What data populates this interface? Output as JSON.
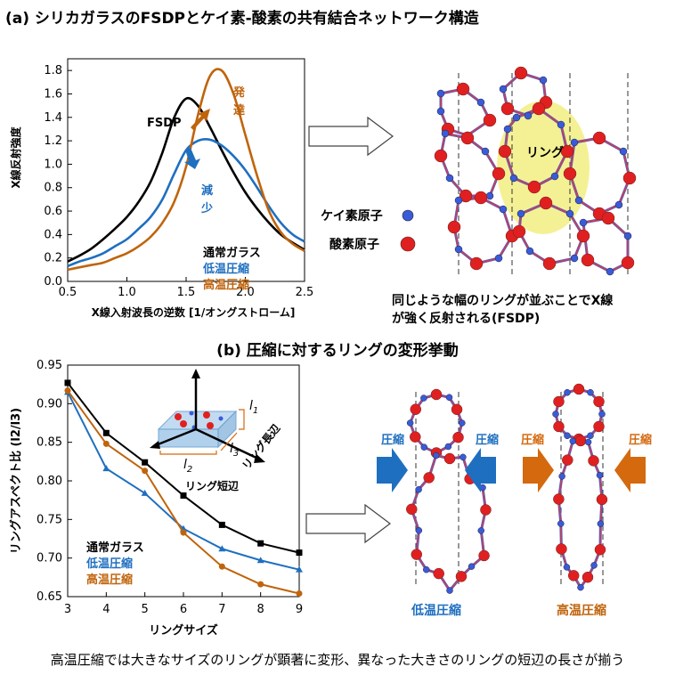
{
  "panel_a": {
    "title": "(a) シリカガラスのFSDPとケイ素-酸素の共有結合ネットワーク構造",
    "caption_line1": "同じような幅のリングが並ぶことでX線",
    "caption_line2": "が強く反射される(FSDP)",
    "ring_label": "リング",
    "si_label": "ケイ素原子",
    "o_label": "酸素原子",
    "annotation_fsdp": "FSDP",
    "annotation_develop": [
      "発",
      "達"
    ],
    "annotation_decrease": [
      "減",
      "少"
    ]
  },
  "panel_b": {
    "title": "(b) 圧縮に対するリングの変形挙動",
    "compress_label": "圧縮",
    "low_temp_label": "低温圧縮",
    "high_temp_label": "高温圧縮",
    "inset_long": "リング長辺",
    "inset_short": "リング短辺",
    "inset_l1": "l",
    "inset_l1_sub": "1",
    "inset_l2": "l",
    "inset_l2_sub": "2",
    "inset_l3": "l",
    "inset_l3_sub": "3"
  },
  "footer": "高温圧縮では大きなサイズのリングが顕著に変形、異なった大きさのリングの短辺の長さが揃う",
  "colors": {
    "normal": "#000000",
    "low": "#1f6fc0",
    "high": "#c0640c",
    "si": "#3a5bd9",
    "o": "#e02020",
    "ring_hl": "#f3f08a"
  },
  "chart_data": [
    {
      "type": "line",
      "title": "",
      "xlabel": "X線入射波長の逆数 [1/オングストローム]",
      "ylabel": "X線反射強度",
      "xlim": [
        0.5,
        2.5
      ],
      "ylim": [
        0.0,
        1.9
      ],
      "xticks": [
        "0.5",
        "1.0",
        "1.5",
        "2.0",
        "2.5"
      ],
      "yticks": [
        "0.0",
        "0.2",
        "0.4",
        "0.6",
        "0.8",
        "1.0",
        "1.2",
        "1.4",
        "1.6",
        "1.8"
      ],
      "series": [
        {
          "name": "通常ガラス",
          "color": "#000000",
          "x": [
            0.5,
            0.6,
            0.7,
            0.8,
            0.9,
            1.0,
            1.1,
            1.2,
            1.3,
            1.4,
            1.5,
            1.6,
            1.7,
            1.8,
            1.9,
            2.0,
            2.1,
            2.2,
            2.3,
            2.4,
            2.5
          ],
          "y": [
            0.17,
            0.22,
            0.28,
            0.36,
            0.45,
            0.55,
            0.68,
            0.85,
            1.1,
            1.4,
            1.56,
            1.5,
            1.32,
            1.12,
            0.93,
            0.76,
            0.62,
            0.5,
            0.4,
            0.33,
            0.27
          ]
        },
        {
          "name": "低温圧縮",
          "color": "#1f6fc0",
          "x": [
            0.5,
            0.6,
            0.7,
            0.8,
            0.9,
            1.0,
            1.1,
            1.2,
            1.3,
            1.4,
            1.5,
            1.6,
            1.7,
            1.8,
            1.9,
            2.0,
            2.1,
            2.2,
            2.3,
            2.4,
            2.5
          ],
          "y": [
            0.13,
            0.17,
            0.2,
            0.24,
            0.3,
            0.36,
            0.45,
            0.55,
            0.7,
            0.92,
            1.12,
            1.2,
            1.21,
            1.16,
            1.07,
            0.95,
            0.8,
            0.64,
            0.5,
            0.4,
            0.34
          ]
        },
        {
          "name": "高温圧縮",
          "color": "#c0640c",
          "x": [
            0.5,
            0.6,
            0.7,
            0.8,
            0.9,
            1.0,
            1.1,
            1.2,
            1.3,
            1.4,
            1.5,
            1.6,
            1.7,
            1.8,
            1.9,
            2.0,
            2.1,
            2.2,
            2.3,
            2.4,
            2.5
          ],
          "y": [
            0.1,
            0.12,
            0.14,
            0.16,
            0.2,
            0.24,
            0.3,
            0.38,
            0.5,
            0.68,
            0.98,
            1.42,
            1.75,
            1.8,
            1.6,
            1.25,
            0.9,
            0.6,
            0.42,
            0.32,
            0.26
          ]
        }
      ],
      "legend": "right"
    },
    {
      "type": "line",
      "title": "",
      "xlabel": "リングサイズ",
      "ylabel": "リングアスペクト比 (l2/l3)",
      "xlim": [
        3,
        9
      ],
      "ylim": [
        0.65,
        0.95
      ],
      "xticks": [
        "3",
        "4",
        "5",
        "6",
        "7",
        "8",
        "9"
      ],
      "yticks": [
        "0.65",
        "0.70",
        "0.75",
        "0.80",
        "0.85",
        "0.90",
        "0.95"
      ],
      "series": [
        {
          "name": "通常ガラス",
          "color": "#000000",
          "marker": "square",
          "x": [
            3,
            4,
            5,
            6,
            7,
            8,
            9
          ],
          "y": [
            0.927,
            0.862,
            0.824,
            0.781,
            0.743,
            0.719,
            0.707
          ]
        },
        {
          "name": "低温圧縮",
          "color": "#1f6fc0",
          "marker": "triangle",
          "x": [
            3,
            4,
            5,
            6,
            7,
            8,
            9
          ],
          "y": [
            0.915,
            0.816,
            0.784,
            0.738,
            0.712,
            0.697,
            0.685
          ]
        },
        {
          "name": "高温圧縮",
          "color": "#c0640c",
          "marker": "circle",
          "x": [
            3,
            4,
            5,
            6,
            7,
            8,
            9
          ],
          "y": [
            0.917,
            0.848,
            0.813,
            0.733,
            0.689,
            0.666,
            0.654
          ]
        }
      ],
      "legend": "bottom-left"
    }
  ]
}
